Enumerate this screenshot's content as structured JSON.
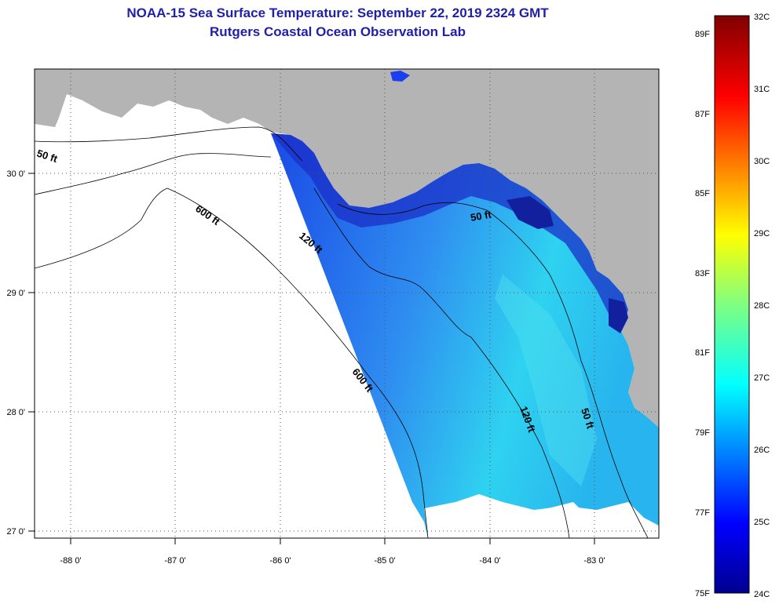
{
  "title": {
    "line1": "NOAA-15 Sea Surface Temperature:  September 22, 2019 2324 GMT",
    "line2": "Rutgers Coastal Ocean Observation Lab"
  },
  "colors": {
    "title": "#1f1fa8",
    "land": "#b4b4b4",
    "no_data": "#ffffff"
  },
  "map": {
    "x_ticks": [
      "-88 0'",
      "-87 0'",
      "-86 0'",
      "-85 0'",
      "-84 0'",
      "-83 0'"
    ],
    "y_ticks": [
      "30 0'",
      "29 0'",
      "28 0'",
      "27 0'"
    ],
    "contour_labels": [
      "50 ft",
      "600 ft",
      "120 ft",
      "50 ft",
      "600 ft",
      "120 ft",
      "50 ft"
    ]
  },
  "colorbar": {
    "fahrenheit_labels": [
      "89F",
      "87F",
      "85F",
      "83F",
      "81F",
      "79F",
      "77F",
      "75F"
    ],
    "celsius_labels": [
      "32C",
      "31C",
      "30C",
      "29C",
      "28C",
      "27C",
      "26C",
      "25C",
      "24C"
    ],
    "range_c": [
      24,
      32
    ],
    "colormap": "jet"
  }
}
